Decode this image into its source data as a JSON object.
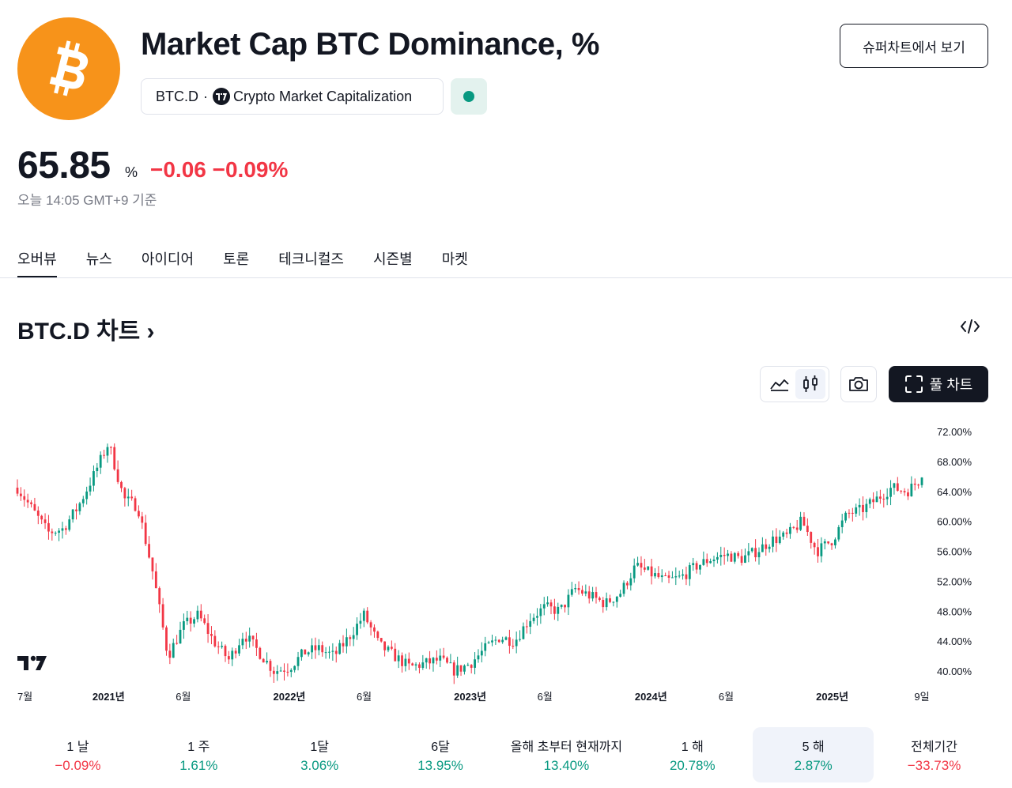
{
  "header": {
    "title": "Market Cap BTC Dominance, %",
    "symbol": "BTC.D",
    "separator": "·",
    "source": "Crypto Market Capitalization",
    "super_chart_label": "슈퍼차트에서 보기",
    "logo_icon": "bitcoin-icon",
    "status_icon": "market-status-dot"
  },
  "quote": {
    "price": "65.85",
    "unit": "%",
    "change": "−0.06 −0.09%",
    "timestamp": "오늘 14:05 GMT+9 기준"
  },
  "tabs": [
    "오버뷰",
    "뉴스",
    "아이디어",
    "토론",
    "테크니컬즈",
    "시즌별",
    "마켓"
  ],
  "active_tab": 0,
  "chart_section": {
    "title": "BTC.D 차트",
    "chevron": "›",
    "full_chart_label": "풀 차트",
    "tools": [
      "area-chart-icon",
      "candles-icon",
      "camera-icon",
      "fullscreen-icon",
      "embed-code-icon"
    ]
  },
  "chart_data": {
    "type": "candlestick",
    "x_tick_labels": [
      "7월",
      "2021년",
      "6월",
      "2022년",
      "6월",
      "2023년",
      "6월",
      "2024년",
      "6월",
      "2025년",
      "9일"
    ],
    "y_tick_labels": [
      "72.00%",
      "68.00%",
      "64.00%",
      "60.00%",
      "56.00%",
      "52.00%",
      "48.00%",
      "44.00%",
      "40.00%"
    ],
    "ylim": [
      38.8,
      73.5
    ],
    "colors": {
      "up": "#089981",
      "down": "#f23645"
    },
    "trend": [
      {
        "x": "2020-07",
        "y": 64.5
      },
      {
        "x": "2020-08",
        "y": 61.5
      },
      {
        "x": "2020-09",
        "y": 58.5
      },
      {
        "x": "2020-10",
        "y": 59.0
      },
      {
        "x": "2020-11",
        "y": 62.0
      },
      {
        "x": "2020-12",
        "y": 66.0
      },
      {
        "x": "2021-01",
        "y": 70.5
      },
      {
        "x": "2021-02",
        "y": 63.0
      },
      {
        "x": "2021-03",
        "y": 62.0
      },
      {
        "x": "2021-04",
        "y": 53.0
      },
      {
        "x": "2021-05",
        "y": 42.0
      },
      {
        "x": "2021-06",
        "y": 46.0
      },
      {
        "x": "2021-07",
        "y": 47.5
      },
      {
        "x": "2021-08",
        "y": 44.0
      },
      {
        "x": "2021-09",
        "y": 41.5
      },
      {
        "x": "2021-10",
        "y": 45.0
      },
      {
        "x": "2021-11",
        "y": 42.5
      },
      {
        "x": "2021-12",
        "y": 40.0
      },
      {
        "x": "2022-01",
        "y": 40.5
      },
      {
        "x": "2022-02",
        "y": 42.5
      },
      {
        "x": "2022-03",
        "y": 43.0
      },
      {
        "x": "2022-04",
        "y": 42.0
      },
      {
        "x": "2022-05",
        "y": 44.5
      },
      {
        "x": "2022-06",
        "y": 47.5
      },
      {
        "x": "2022-07",
        "y": 43.5
      },
      {
        "x": "2022-08",
        "y": 42.0
      },
      {
        "x": "2022-09",
        "y": 40.5
      },
      {
        "x": "2022-10",
        "y": 41.0
      },
      {
        "x": "2022-11",
        "y": 41.5
      },
      {
        "x": "2022-12",
        "y": 40.0
      },
      {
        "x": "2023-01",
        "y": 41.0
      },
      {
        "x": "2023-02",
        "y": 43.0
      },
      {
        "x": "2023-03",
        "y": 44.5
      },
      {
        "x": "2023-04",
        "y": 44.0
      },
      {
        "x": "2023-05",
        "y": 47.0
      },
      {
        "x": "2023-06",
        "y": 48.5
      },
      {
        "x": "2023-07",
        "y": 48.0
      },
      {
        "x": "2023-08",
        "y": 51.0
      },
      {
        "x": "2023-09",
        "y": 50.0
      },
      {
        "x": "2023-10",
        "y": 49.0
      },
      {
        "x": "2023-11",
        "y": 50.5
      },
      {
        "x": "2023-12",
        "y": 54.0
      },
      {
        "x": "2024-01",
        "y": 53.0
      },
      {
        "x": "2024-02",
        "y": 52.0
      },
      {
        "x": "2024-03",
        "y": 52.5
      },
      {
        "x": "2024-04",
        "y": 54.0
      },
      {
        "x": "2024-05",
        "y": 55.0
      },
      {
        "x": "2024-06",
        "y": 55.5
      },
      {
        "x": "2024-07",
        "y": 55.0
      },
      {
        "x": "2024-08",
        "y": 56.0
      },
      {
        "x": "2024-09",
        "y": 57.5
      },
      {
        "x": "2024-10",
        "y": 58.0
      },
      {
        "x": "2024-11",
        "y": 60.0
      },
      {
        "x": "2024-12",
        "y": 56.0
      },
      {
        "x": "2025-01",
        "y": 57.5
      },
      {
        "x": "2025-02",
        "y": 61.0
      },
      {
        "x": "2025-03",
        "y": 61.5
      },
      {
        "x": "2025-04",
        "y": 63.0
      },
      {
        "x": "2025-05",
        "y": 64.5
      },
      {
        "x": "2025-06",
        "y": 64.0
      },
      {
        "x": "2025-07",
        "y": 65.85
      }
    ]
  },
  "periods": [
    {
      "label": "1 날",
      "value": "−0.09%",
      "sign": "neg"
    },
    {
      "label": "1 주",
      "value": "1.61%",
      "sign": "pos"
    },
    {
      "label": "1달",
      "value": "3.06%",
      "sign": "pos"
    },
    {
      "label": "6달",
      "value": "13.95%",
      "sign": "pos"
    },
    {
      "label": "올해 초부터 현재까지",
      "value": "13.40%",
      "sign": "pos"
    },
    {
      "label": "1 해",
      "value": "20.78%",
      "sign": "pos"
    },
    {
      "label": "5 해",
      "value": "2.87%",
      "sign": "pos"
    },
    {
      "label": "전체기간",
      "value": "−33.73%",
      "sign": "neg"
    }
  ],
  "active_period": 6
}
